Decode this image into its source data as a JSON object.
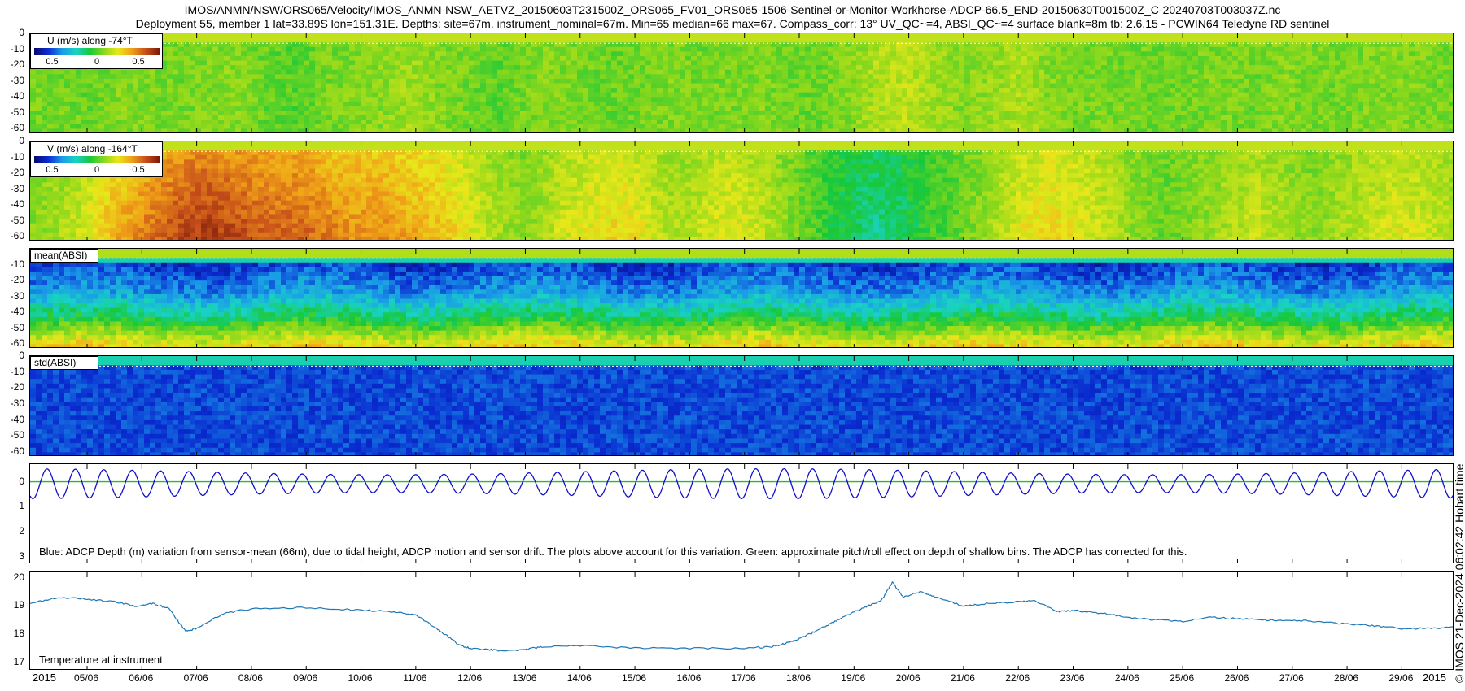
{
  "header": {
    "line1": "IMOS/ANMN/NSW/ORS065/Velocity/IMOS_ANMN-NSW_AETVZ_20150603T231500Z_ORS065_FV01_ORS065-1506-Sentinel-or-Monitor-Workhorse-ADCP-66.5_END-20150630T001500Z_C-20240703T003037Z.nc",
    "line2": "Deployment 55, member 1 lat=33.89S lon=151.31E. Depths: site=67m, instrument_nominal=67m. Min=65 median=66 max=67. Compass_corr: 13° UV_QC~=4, ABSI_QC~=4 surface blank=8m tb: 2.6.15 - PCWIN64 Teledyne RD sentinel"
  },
  "panels": {
    "u": {
      "label": "U (m/s) along -74°T",
      "cb_ticks": [
        "0.5",
        "0",
        "0.5"
      ]
    },
    "v": {
      "label": "V (m/s) along -164°T",
      "cb_ticks": [
        "0.5",
        "0",
        "0.5"
      ]
    },
    "mean_absi": {
      "label": "mean(ABSI)"
    },
    "std_absi": {
      "label": "std(ABSI)"
    },
    "depth": {
      "annotation": "Blue: ADCP Depth (m) variation from sensor-mean (66m), due to tidal height, ADCP motion and sensor drift. The plots above account for this variation. Green: approximate pitch/roll effect on depth of shallow bins. The ADCP has corrected for this."
    },
    "temp": {
      "annotation": "Temperature at instrument"
    }
  },
  "side_label": "© IMOS 21-Dec-2024 06:02:42 Hobart time",
  "colors": {
    "depth_line": "#1010c8",
    "pitch_line": "#22c022",
    "temp_line": "#1f77b4",
    "colormap": [
      "#08086e",
      "#0a2bd0",
      "#1a9be8",
      "#19d2c4",
      "#18c83a",
      "#8ad81c",
      "#e8e81a",
      "#f0a018",
      "#c8501a",
      "#7a1a08"
    ]
  },
  "chart_data": [
    {
      "type": "heatmap",
      "name": "U velocity",
      "y_ticks": [
        "0",
        "-10",
        "-20",
        "-30",
        "-40",
        "-50",
        "-60"
      ],
      "ylim": [
        -63,
        0
      ],
      "clim": [
        -0.8,
        0.8
      ],
      "time_profile": [
        0.02,
        0.02,
        0.0,
        0.05,
        0.03,
        0.02,
        0.04,
        0.06,
        0.0,
        -0.03,
        0.02,
        0.04,
        0.06,
        0.1,
        0.05,
        0.02,
        -0.02,
        0.03,
        0.05,
        0.02,
        0.0,
        0.02,
        0.04,
        0.02,
        0.03,
        0.04,
        0.02,
        0.0,
        0.05,
        0.12,
        0.15,
        0.1,
        0.05,
        0.08,
        0.12,
        0.05,
        0.02,
        0.03,
        0.02,
        0.01,
        0.02,
        0.04,
        0.02,
        0.05,
        0.03,
        0.02,
        0.04,
        0.05,
        0.03,
        0.02
      ]
    },
    {
      "type": "heatmap",
      "name": "V velocity",
      "y_ticks": [
        "0",
        "-10",
        "-20",
        "-30",
        "-40",
        "-50",
        "-60"
      ],
      "ylim": [
        -63,
        0
      ],
      "clim": [
        -0.8,
        0.8
      ],
      "time_profile": [
        0.05,
        0.1,
        0.2,
        0.35,
        0.45,
        0.55,
        0.6,
        0.55,
        0.5,
        0.5,
        0.45,
        0.4,
        0.4,
        0.35,
        0.3,
        0.2,
        0.1,
        0.05,
        0.15,
        0.2,
        0.25,
        0.2,
        0.1,
        0.15,
        0.2,
        0.15,
        0.05,
        -0.05,
        -0.15,
        -0.2,
        -0.15,
        -0.05,
        0.0,
        0.1,
        0.2,
        0.25,
        0.2,
        0.15,
        0.05,
        0.0,
        0.05,
        0.1,
        0.15,
        0.1,
        0.05,
        0.1,
        0.15,
        0.2,
        0.15,
        0.1
      ]
    },
    {
      "type": "heatmap",
      "name": "mean(ABSI)",
      "y_ticks": [
        "-10",
        "-20",
        "-30",
        "-40",
        "-50",
        "-60"
      ],
      "ylim": [
        -63,
        0
      ],
      "clim": [
        0,
        1
      ]
    },
    {
      "type": "heatmap",
      "name": "std(ABSI)",
      "y_ticks": [
        "0",
        "-10",
        "-20",
        "-30",
        "-40",
        "-50",
        "-60"
      ],
      "ylim": [
        -63,
        0
      ],
      "clim": [
        0,
        1
      ]
    },
    {
      "type": "line",
      "name": "ADCP depth variation",
      "ylim": [
        -0.7,
        3.3
      ],
      "y_ticks": [
        "0",
        "1",
        "2",
        "3"
      ],
      "amplitude_m": 0.6,
      "period_days": 0.5175,
      "pitch_roll_level": 0
    },
    {
      "type": "line",
      "name": "Temperature",
      "ylim": [
        16.7,
        20.2
      ],
      "y_ticks": [
        "20",
        "19",
        "18",
        "17"
      ],
      "x": [
        3.96,
        4.5,
        5.0,
        5.5,
        5.9,
        6.2,
        6.5,
        6.8,
        7.0,
        7.5,
        8.0,
        9.0,
        10.0,
        10.6,
        11.0,
        11.3,
        11.6,
        11.8,
        12.0,
        12.3,
        12.6,
        13.0,
        13.3,
        14.0,
        15.0,
        16.0,
        17.0,
        17.5,
        17.8,
        18.0,
        18.3,
        18.6,
        18.9,
        19.2,
        19.5,
        19.7,
        19.9,
        20.2,
        20.5,
        21.0,
        21.5,
        22.0,
        22.3,
        22.7,
        23.0,
        23.5,
        24.0,
        24.5,
        25.0,
        25.5,
        26.0,
        26.5,
        27.0,
        27.5,
        28.0,
        28.5,
        29.0,
        29.5,
        29.96
      ],
      "values": [
        19.1,
        19.3,
        19.25,
        19.15,
        19.0,
        19.1,
        18.9,
        18.1,
        18.2,
        18.75,
        18.9,
        18.95,
        18.85,
        18.8,
        18.7,
        18.3,
        17.9,
        17.6,
        17.5,
        17.45,
        17.4,
        17.45,
        17.55,
        17.6,
        17.5,
        17.5,
        17.5,
        17.55,
        17.7,
        17.85,
        18.1,
        18.4,
        18.7,
        18.95,
        19.2,
        19.85,
        19.3,
        19.5,
        19.3,
        19.0,
        19.1,
        19.15,
        19.2,
        18.8,
        18.85,
        18.75,
        18.6,
        18.5,
        18.45,
        18.6,
        18.55,
        18.5,
        18.5,
        18.45,
        18.35,
        18.3,
        18.2,
        18.2,
        18.25
      ]
    }
  ],
  "x_axis": {
    "start_day": 3.96,
    "end_day": 29.96,
    "ticks": [
      {
        "day": 5,
        "label": "05/06"
      },
      {
        "day": 6,
        "label": "06/06"
      },
      {
        "day": 7,
        "label": "07/06"
      },
      {
        "day": 8,
        "label": "08/06"
      },
      {
        "day": 9,
        "label": "09/06"
      },
      {
        "day": 10,
        "label": "10/06"
      },
      {
        "day": 11,
        "label": "11/06"
      },
      {
        "day": 12,
        "label": "12/06"
      },
      {
        "day": 13,
        "label": "13/06"
      },
      {
        "day": 14,
        "label": "14/06"
      },
      {
        "day": 15,
        "label": "15/06"
      },
      {
        "day": 16,
        "label": "16/06"
      },
      {
        "day": 17,
        "label": "17/06"
      },
      {
        "day": 18,
        "label": "18/06"
      },
      {
        "day": 19,
        "label": "19/06"
      },
      {
        "day": 20,
        "label": "20/06"
      },
      {
        "day": 21,
        "label": "21/06"
      },
      {
        "day": 22,
        "label": "22/06"
      },
      {
        "day": 23,
        "label": "23/06"
      },
      {
        "day": 24,
        "label": "24/06"
      },
      {
        "day": 25,
        "label": "25/06"
      },
      {
        "day": 26,
        "label": "26/06"
      },
      {
        "day": 27,
        "label": "27/06"
      },
      {
        "day": 28,
        "label": "28/06"
      },
      {
        "day": 29,
        "label": "29/06"
      }
    ],
    "year_left": "2015",
    "year_right": "2015"
  }
}
